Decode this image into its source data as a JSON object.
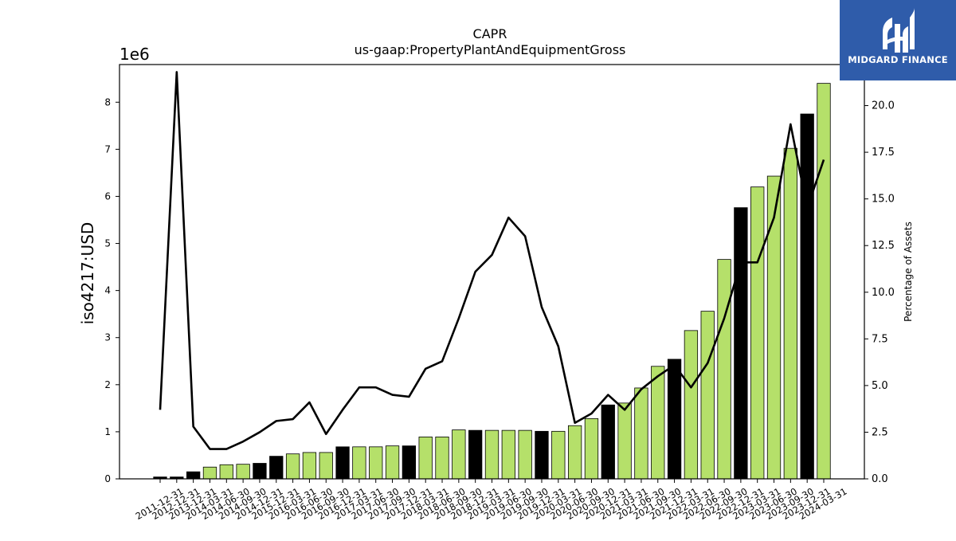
{
  "brand": {
    "name": "MIDGARD FINANCE",
    "bg_color": "#2f5caa"
  },
  "chart_data": {
    "type": "bar",
    "title": "CAPR",
    "subtitle": "us-gaap:PropertyPlantAndEquipmentGross",
    "ylabel": "iso4217:USD",
    "y_scale_label": "1e6",
    "y2label": "Percentage of Assets",
    "ylim": [
      0,
      8800000
    ],
    "y2lim": [
      0,
      22.2
    ],
    "y_ticks": [
      0,
      1,
      2,
      3,
      4,
      5,
      6,
      7,
      8
    ],
    "y2_ticks": [
      "0.0",
      "2.5",
      "5.0",
      "7.5",
      "10.0",
      "12.5",
      "15.0",
      "17.5",
      "20.0"
    ],
    "categories": [
      "2011-12-31",
      "2012-12-31",
      "2013-12-31",
      "2014-03-31",
      "2014-06-30",
      "2014-09-30",
      "2014-12-31",
      "2015-12-31",
      "2016-03-31",
      "2016-06-30",
      "2016-09-30",
      "2016-12-31",
      "2017-03-31",
      "2017-06-30",
      "2017-09-30",
      "2017-12-31",
      "2018-03-31",
      "2018-06-30",
      "2018-09-30",
      "2018-12-31",
      "2019-03-31",
      "2019-06-30",
      "2019-09-30",
      "2019-12-31",
      "2020-03-31",
      "2020-06-30",
      "2020-09-30",
      "2020-12-31",
      "2021-03-31",
      "2021-06-30",
      "2021-09-30",
      "2021-12-31",
      "2022-03-31",
      "2022-06-30",
      "2022-09-30",
      "2022-12-31",
      "2023-03-31",
      "2023-06-30",
      "2023-09-30",
      "2023-12-31",
      "2024-03-31"
    ],
    "series": [
      {
        "kind": "bar",
        "values": [
          40000,
          40000,
          150000,
          250000,
          300000,
          310000,
          330000,
          480000,
          530000,
          560000,
          560000,
          680000,
          680000,
          680000,
          700000,
          700000,
          890000,
          890000,
          1040000,
          1030000,
          1030000,
          1030000,
          1030000,
          1010000,
          1010000,
          1130000,
          1280000,
          1570000,
          1610000,
          1930000,
          2390000,
          2540000,
          3150000,
          3560000,
          4660000,
          5760000,
          6200000,
          6430000,
          7020000,
          7750000,
          8400000
        ],
        "is_annual": [
          true,
          true,
          true,
          false,
          false,
          false,
          true,
          true,
          false,
          false,
          false,
          true,
          false,
          false,
          false,
          true,
          false,
          false,
          false,
          true,
          false,
          false,
          false,
          true,
          false,
          false,
          false,
          true,
          false,
          false,
          false,
          true,
          false,
          false,
          false,
          true,
          false,
          false,
          false,
          true,
          false
        ],
        "colors": {
          "annual": "#000000",
          "quarterly": "#b5e06a"
        }
      },
      {
        "kind": "line",
        "axis": "right",
        "values": [
          3.7,
          21.8,
          2.8,
          1.6,
          1.6,
          2.0,
          2.5,
          3.1,
          3.2,
          4.1,
          2.4,
          3.7,
          4.9,
          4.9,
          4.5,
          4.4,
          5.9,
          6.3,
          8.6,
          11.1,
          12.0,
          14.0,
          13.0,
          9.2,
          7.1,
          3.0,
          3.5,
          4.5,
          3.7,
          4.8,
          5.5,
          6.1,
          4.9,
          6.2,
          8.6,
          11.6,
          11.6,
          14.0,
          19.0,
          14.5,
          17.1
        ],
        "color": "#000000"
      }
    ]
  }
}
